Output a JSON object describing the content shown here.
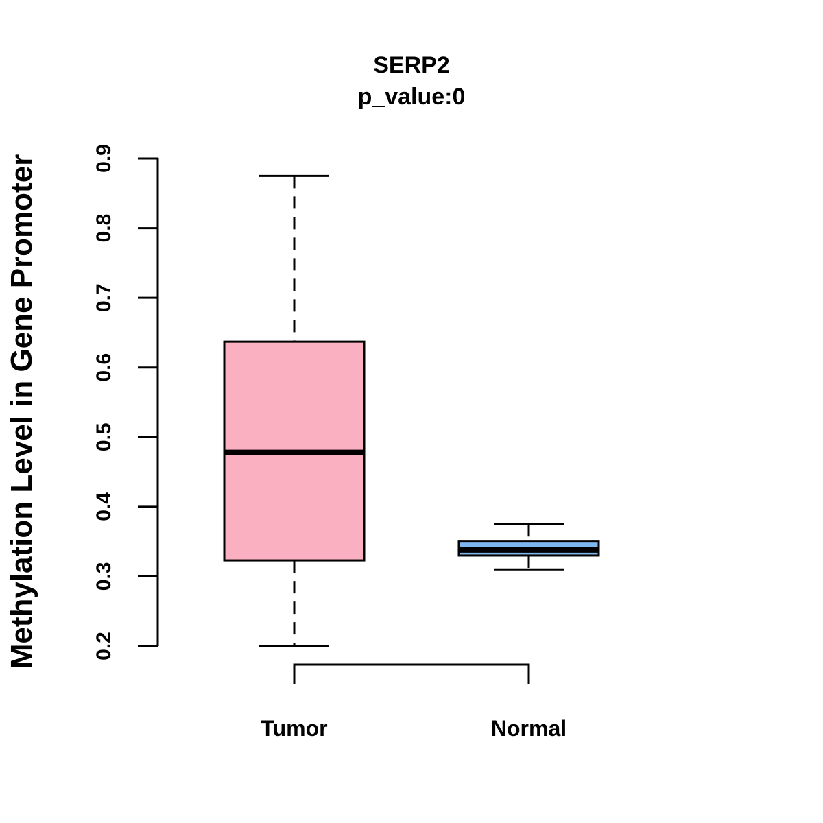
{
  "chart_data": {
    "type": "boxplot",
    "title": "SERP2",
    "subtitle": "p_value:0",
    "xlabel": "",
    "ylabel": "Methylation Level in Gene Promoter",
    "ylim": [
      0.2,
      0.9
    ],
    "y_ticks": [
      0.2,
      0.3,
      0.4,
      0.5,
      0.6,
      0.7,
      0.8,
      0.9
    ],
    "y_tick_labels": [
      "0.2",
      "0.3",
      "0.4",
      "0.5",
      "0.6",
      "0.7",
      "0.8",
      "0.9"
    ],
    "categories": [
      "Tumor",
      "Normal"
    ],
    "boxes": [
      {
        "name": "Tumor",
        "whisker_low": 0.2,
        "q1": 0.323,
        "median": 0.478,
        "q3": 0.637,
        "whisker_high": 0.875,
        "color": "#FBB0C2"
      },
      {
        "name": "Normal",
        "whisker_low": 0.31,
        "q1": 0.33,
        "median": 0.338,
        "q3": 0.35,
        "whisker_high": 0.375,
        "color": "#7EB6EE"
      }
    ],
    "comparison_bracket": [
      "Tumor",
      "Normal"
    ],
    "grid": false,
    "legend": "none"
  }
}
